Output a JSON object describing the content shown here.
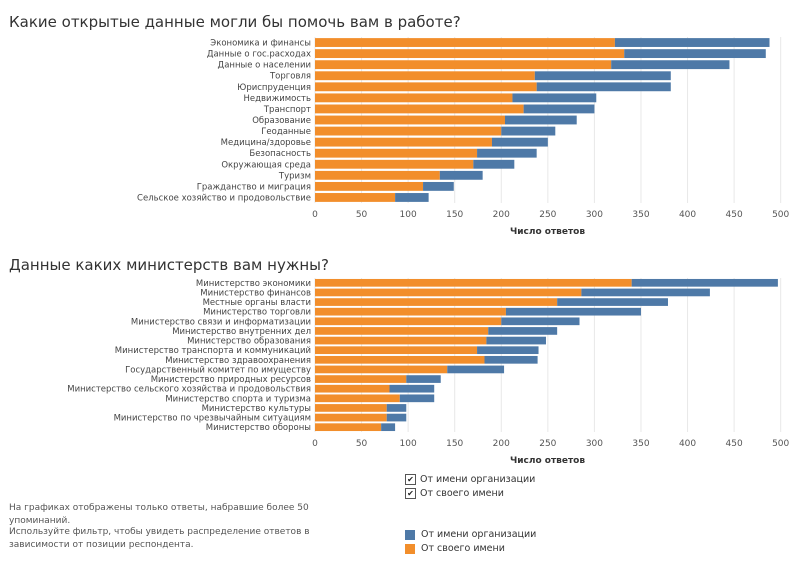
{
  "colors": {
    "org": "#4e79a7",
    "self": "#f28e2b"
  },
  "chart_data": [
    {
      "type": "bar",
      "orientation": "horizontal",
      "stacked": true,
      "title": "Какие открытые данные могли бы помочь вам в работе?",
      "xlabel": "Число ответов",
      "xlim": [
        0,
        510
      ],
      "xticks": [
        0,
        50,
        100,
        150,
        200,
        250,
        300,
        350,
        400,
        450,
        500
      ],
      "categories": [
        "Экономика и финансы",
        "Данные о гос.расходах",
        "Данные о населении",
        "Торговля",
        "Юриспруденция",
        "Недвижимость",
        "Транспорт",
        "Образование",
        "Геоданные",
        "Медицина/здоровье",
        "Безопасность",
        "Окружающая среда",
        "Туризм",
        "Гражданство и миграция",
        "Сельское хозяйство и продовольствие"
      ],
      "series": [
        {
          "name": "От своего имени",
          "values": [
            322,
            332,
            318,
            236,
            238,
            212,
            224,
            204,
            200,
            190,
            174,
            170,
            134,
            116,
            86
          ]
        },
        {
          "name": "От имени организации",
          "values": [
            166,
            152,
            127,
            146,
            144,
            90,
            76,
            77,
            58,
            60,
            64,
            44,
            46,
            33,
            36
          ]
        }
      ]
    },
    {
      "type": "bar",
      "orientation": "horizontal",
      "stacked": true,
      "title": "Данные каких министерств вам нужны?",
      "xlabel": "Число ответов",
      "xlim": [
        0,
        510
      ],
      "xticks": [
        0,
        50,
        100,
        150,
        200,
        250,
        300,
        350,
        400,
        450,
        500
      ],
      "categories": [
        "Министерство экономики",
        "Министерство финансов",
        "Местные органы власти",
        "Министерство торговли",
        "Министерство связи и информатизации",
        "Министерство внутренних дел",
        "Министерство образования",
        "Министерство транспорта и коммуникаций",
        "Министерство здравоохранения",
        "Государственный комитет по имуществу",
        "Министерство природных ресурсов",
        "Министерство сельского хозяйства и продовольствия",
        "Министерство спорта и туризма",
        "Министерство культуры",
        "Министерство по чрезвычайным ситуациям",
        "Министерство обороны"
      ],
      "series": [
        {
          "name": "От своего имени",
          "values": [
            340,
            286,
            260,
            205,
            200,
            186,
            184,
            174,
            182,
            142,
            98,
            80,
            91,
            77,
            77,
            71
          ]
        },
        {
          "name": "От имени организации",
          "values": [
            157,
            138,
            119,
            145,
            84,
            74,
            64,
            66,
            57,
            61,
            37,
            48,
            37,
            21,
            21,
            15
          ]
        }
      ]
    }
  ],
  "filter": {
    "items": [
      {
        "label": "От имени организации",
        "checked": "✔"
      },
      {
        "label": "От своего имени",
        "checked": "✔"
      }
    ]
  },
  "legend": {
    "items": [
      {
        "label": "От имени организации",
        "color": "#4e79a7"
      },
      {
        "label": "От своего имени",
        "color": "#f28e2b"
      }
    ]
  },
  "notes": {
    "line1": "На графиках отображены только ответы, набравшие более 50 упоминаний.",
    "line2": "Используйте фильтр, чтобы увидеть распределение ответов в зависимости от позиции респондента."
  }
}
